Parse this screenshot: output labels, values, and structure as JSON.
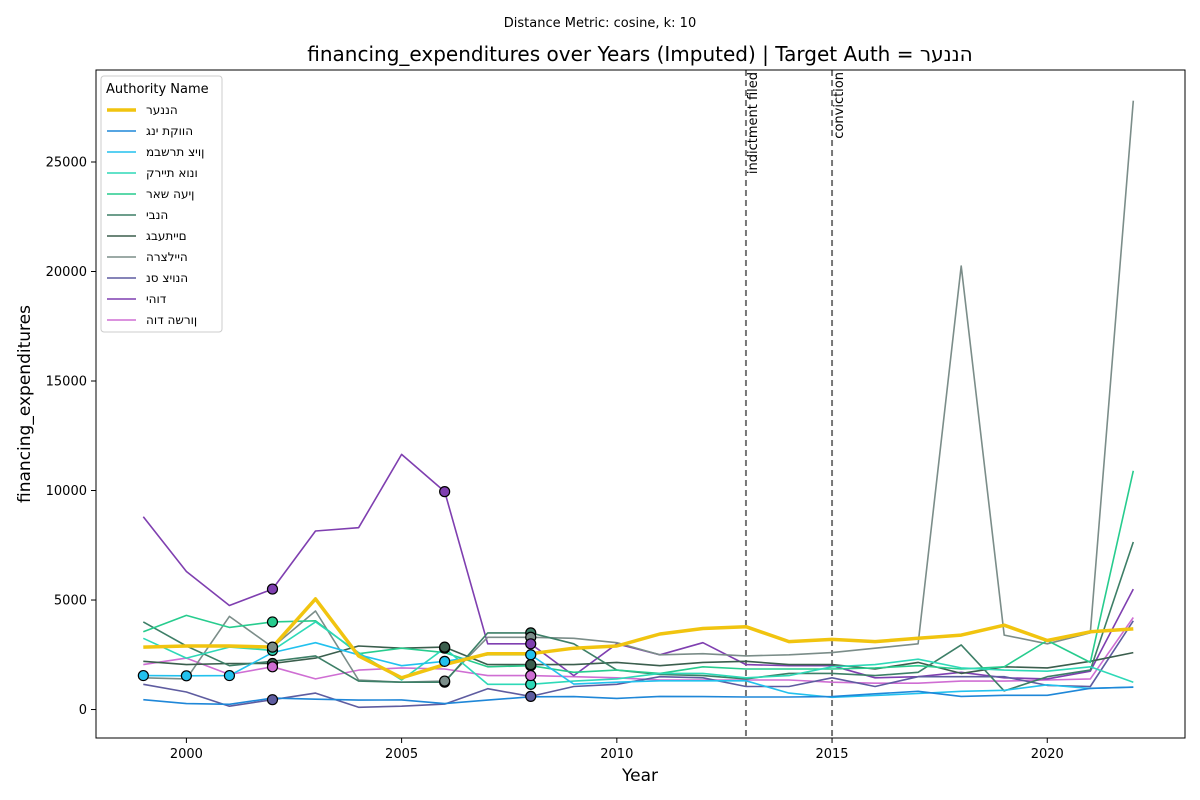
{
  "chart_data": {
    "type": "line",
    "suptitle": "Distance Metric: cosine, k: 10",
    "title": "financing_expenditures over Years (Imputed) | Target Auth = הננער",
    "xlabel": "Year",
    "ylabel": "financing_expenditures",
    "xlim": [
      1997.9,
      2023.2
    ],
    "ylim": [
      -1300,
      29200
    ],
    "xticks": [
      2000,
      2005,
      2010,
      2015,
      2020
    ],
    "yticks": [
      0,
      5000,
      10000,
      15000,
      20000,
      25000
    ],
    "grid": false,
    "legend": {
      "title": "Authority Name",
      "placement": "top-left"
    },
    "event_lines": [
      {
        "x": 2013,
        "label": "indictment filed"
      },
      {
        "x": 2015,
        "label": "conviction"
      }
    ],
    "x": [
      1999,
      2000,
      2001,
      2002,
      2003,
      2004,
      2005,
      2006,
      2007,
      2008,
      2009,
      2010,
      2011,
      2012,
      2013,
      2014,
      2015,
      2016,
      2017,
      2018,
      2019,
      2020,
      2021,
      2022
    ],
    "series": [
      {
        "name": "הננער",
        "color": "#f1c40f",
        "width": 3.5,
        "values": [
          2850,
          2900,
          2900,
          2850,
          5050,
          2450,
          1450,
          2050,
          2550,
          2550,
          2800,
          2900,
          3450,
          3700,
          3780,
          3100,
          3200,
          3100,
          3250,
          3400,
          3850,
          3150,
          3550,
          3680
        ],
        "markers": []
      },
      {
        "name": "הווקת ינג",
        "color": "#1f87d8",
        "width": 1.6,
        "values": [
          450,
          270,
          240,
          520,
          470,
          430,
          440,
          270,
          430,
          580,
          590,
          510,
          600,
          590,
          570,
          570,
          590,
          720,
          830,
          600,
          650,
          650,
          970,
          1020
        ],
        "markers": []
      },
      {
        "name": "ןויצ תרשבמ",
        "color": "#22c1ee",
        "width": 1.6,
        "values": [
          1550,
          1540,
          1550,
          2600,
          3050,
          2500,
          2000,
          2200,
          2500,
          2500,
          1160,
          1250,
          1310,
          1310,
          1310,
          750,
          560,
          640,
          730,
          830,
          880,
          1130,
          960,
          1030
        ],
        "markers": [
          1999,
          2000,
          2001,
          2006,
          2008
        ]
      },
      {
        "name": "ונוא תיירק",
        "color": "#2ed9b7",
        "width": 1.6,
        "values": [
          3250,
          2350,
          2850,
          2700,
          4000,
          2600,
          1350,
          2800,
          1150,
          1150,
          1300,
          1400,
          1650,
          1650,
          1450,
          1550,
          1950,
          2050,
          2300,
          1900,
          1800,
          1750,
          1950,
          1250
        ],
        "markers": [
          2002,
          2006,
          2008
        ]
      },
      {
        "name": "ןיעה שאר",
        "color": "#27cc8e",
        "width": 1.6,
        "values": [
          3550,
          4300,
          3750,
          4000,
          4050,
          2550,
          2800,
          2600,
          1950,
          2000,
          1700,
          1800,
          1650,
          1950,
          1850,
          1850,
          1850,
          1900,
          2000,
          1850,
          1950,
          3150,
          2150,
          10900
        ],
        "markers": [
          2002,
          2008
        ]
      },
      {
        "name": "הנבי",
        "color": "#3d7f67",
        "width": 1.6,
        "values": [
          4000,
          2900,
          2000,
          2200,
          2450,
          1300,
          1250,
          1250,
          3500,
          3500,
          3000,
          1800,
          1600,
          1550,
          1400,
          1650,
          1650,
          1550,
          1700,
          2950,
          850,
          1500,
          1800,
          7650
        ],
        "markers": [
          2006,
          2008
        ]
      },
      {
        "name": "םייתעבג",
        "color": "#3b5e4d",
        "width": 1.6,
        "values": [
          2200,
          2050,
          2100,
          2100,
          2350,
          2900,
          2800,
          2850,
          2050,
          2050,
          2050,
          2150,
          2000,
          2150,
          2200,
          2050,
          2050,
          1850,
          2150,
          1650,
          1950,
          1900,
          2200,
          2600
        ],
        "markers": [
          2002,
          2006,
          2008
        ]
      },
      {
        "name": "היילצרה",
        "color": "#7b8d89",
        "width": 1.6,
        "values": [
          1450,
          1400,
          4250,
          2850,
          4500,
          1350,
          1250,
          1300,
          3300,
          3300,
          3250,
          3050,
          2500,
          2550,
          2450,
          2500,
          2600,
          2800,
          3000,
          20250,
          3400,
          3000,
          3500,
          27800
        ],
        "markers": [
          2002,
          2006,
          2008
        ]
      },
      {
        "name": "הנויצ סנ",
        "color": "#5e5ca0",
        "width": 1.6,
        "values": [
          1150,
          800,
          150,
          450,
          750,
          100,
          150,
          250,
          950,
          600,
          1050,
          1150,
          1500,
          1450,
          1050,
          1050,
          1450,
          1050,
          1500,
          1500,
          1500,
          1100,
          1050,
          4050
        ],
        "markers": [
          2002,
          2008
        ]
      },
      {
        "name": "דוהי",
        "color": "#7f3fb0",
        "width": 1.6,
        "values": [
          8800,
          6300,
          4750,
          5500,
          8150,
          8300,
          11650,
          9950,
          3000,
          3000,
          1550,
          3000,
          2500,
          3050,
          2050,
          2000,
          2000,
          1450,
          1500,
          1700,
          1450,
          1400,
          1750,
          5500
        ],
        "markers": [
          2002,
          2006,
          2008
        ]
      },
      {
        "name": "ןורשה דוה",
        "color": "#cf6ed3",
        "width": 1.6,
        "values": [
          2050,
          2350,
          1600,
          1950,
          1400,
          1800,
          1900,
          1850,
          1550,
          1550,
          1500,
          1450,
          1350,
          1350,
          1350,
          1350,
          1250,
          1200,
          1200,
          1300,
          1300,
          1350,
          1400,
          4200
        ],
        "markers": [
          2002,
          2008
        ]
      }
    ]
  }
}
